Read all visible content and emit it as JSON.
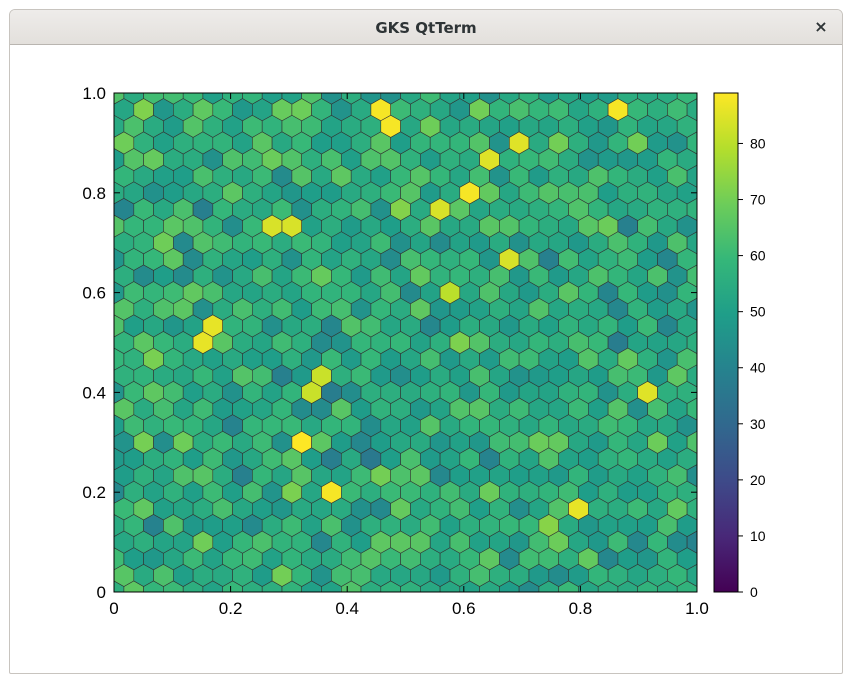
{
  "window": {
    "title": "GKS QtTerm",
    "close_glyph": "×"
  },
  "colors": {
    "window_bg": "#ffffff",
    "titlebar": "#e6e3df",
    "hex_edge": "#333333",
    "colormap": "viridis"
  },
  "chart_data": {
    "type": "heatmap",
    "subtype": "hexbin",
    "title": "",
    "xlabel": "",
    "ylabel": "",
    "xlim": [
      0,
      1.0
    ],
    "ylim": [
      0,
      1.0
    ],
    "x_ticks": [
      "0",
      "0.2",
      "0.4",
      "0.6",
      "0.8",
      "1.0"
    ],
    "y_ticks": [
      "0",
      "0.2",
      "0.4",
      "0.6",
      "0.8",
      "1.0"
    ],
    "colorbar": {
      "range": [
        0,
        89
      ],
      "ticks": [
        "0",
        "10",
        "20",
        "30",
        "40",
        "50",
        "60",
        "70",
        "80"
      ]
    },
    "grid": false,
    "hex_columns": 30,
    "hex_rows": 30,
    "count_distribution": {
      "typical_range": [
        35,
        75
      ],
      "max": 89
    },
    "highlighted_bins": [
      {
        "x": 0.47,
        "y": 0.95,
        "count": 88
      },
      {
        "x": 0.87,
        "y": 0.98,
        "count": 88
      },
      {
        "x": 0.64,
        "y": 0.88,
        "count": 85
      },
      {
        "x": 0.7,
        "y": 0.9,
        "count": 85
      },
      {
        "x": 0.6,
        "y": 0.8,
        "count": 88
      },
      {
        "x": 0.56,
        "y": 0.78,
        "count": 84
      },
      {
        "x": 0.29,
        "y": 0.73,
        "count": 84
      },
      {
        "x": 0.69,
        "y": 0.67,
        "count": 84
      },
      {
        "x": 0.57,
        "y": 0.6,
        "count": 80
      },
      {
        "x": 0.16,
        "y": 0.52,
        "count": 86
      },
      {
        "x": 0.34,
        "y": 0.42,
        "count": 82
      },
      {
        "x": 0.92,
        "y": 0.4,
        "count": 85
      },
      {
        "x": 0.32,
        "y": 0.3,
        "count": 89
      },
      {
        "x": 0.38,
        "y": 0.2,
        "count": 88
      },
      {
        "x": 0.79,
        "y": 0.17,
        "count": 86
      }
    ]
  }
}
